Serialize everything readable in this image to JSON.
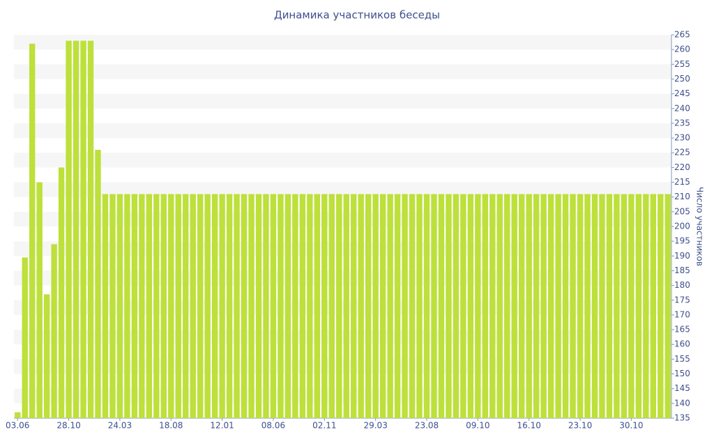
{
  "chart_data": {
    "type": "bar",
    "title": "Динамика участников беседы",
    "y_label": "Число участников",
    "categories": [
      "03.06",
      null,
      null,
      null,
      null,
      null,
      null,
      "28.10",
      null,
      null,
      null,
      null,
      null,
      null,
      "24.03",
      null,
      null,
      null,
      null,
      null,
      null,
      "18.08",
      null,
      null,
      null,
      null,
      null,
      null,
      "12.01",
      null,
      null,
      null,
      null,
      null,
      null,
      "08.06",
      null,
      null,
      null,
      null,
      null,
      null,
      "02.11",
      null,
      null,
      null,
      null,
      null,
      null,
      "29.03",
      null,
      null,
      null,
      null,
      null,
      null,
      "23.08",
      null,
      null,
      null,
      null,
      null,
      null,
      "09.10",
      null,
      null,
      null,
      null,
      null,
      null,
      "16.10",
      null,
      null,
      null,
      null,
      null,
      null,
      "23.10",
      null,
      null,
      null,
      null,
      null,
      null,
      "30.10",
      null,
      null,
      null,
      null,
      null
    ],
    "values": [
      137,
      189.5,
      262,
      215,
      177,
      194,
      220,
      263,
      263,
      263,
      263,
      226,
      211,
      211,
      211,
      211,
      211,
      211,
      211,
      211,
      211,
      211,
      211,
      211,
      211,
      211,
      211,
      211,
      211,
      211,
      211,
      211,
      211,
      211,
      211,
      211,
      211,
      211,
      211,
      211,
      211,
      211,
      211,
      211,
      211,
      211,
      211,
      211,
      211,
      211,
      211,
      211,
      211,
      211,
      211,
      211,
      211,
      211,
      211,
      211,
      211,
      211,
      211,
      211,
      211,
      211,
      211,
      211,
      211,
      211,
      211,
      211,
      211,
      211,
      211,
      211,
      211,
      211,
      211,
      211,
      211,
      211,
      211,
      211,
      211,
      211,
      211,
      211,
      211,
      211
    ],
    "color": "#bde03a",
    "ylim": [
      135,
      265
    ],
    "yticks": [
      135,
      140,
      145,
      150,
      155,
      160,
      165,
      170,
      175,
      180,
      185,
      190,
      195,
      200,
      205,
      210,
      215,
      220,
      225,
      230,
      235,
      240,
      245,
      250,
      255,
      260,
      265
    ],
    "y_axis_side": "right",
    "grid": "bands"
  }
}
